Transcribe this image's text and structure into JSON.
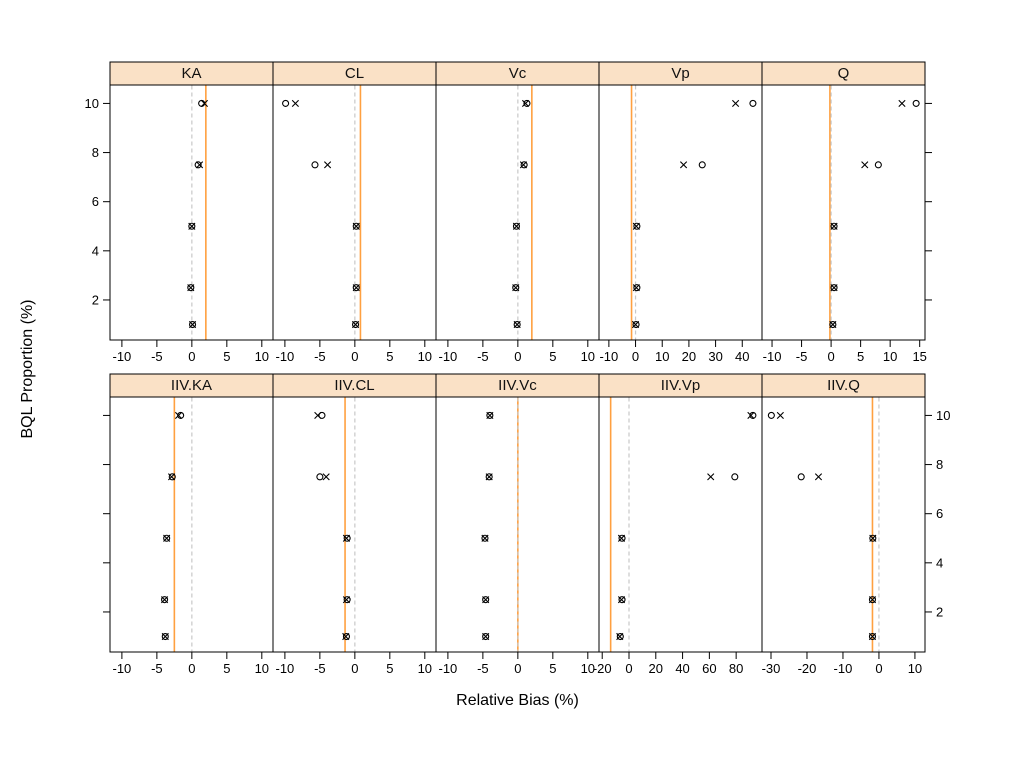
{
  "figure": {
    "xlabel": "Relative Bias (%)",
    "ylabel": "BQL Proportion (%)"
  },
  "colors": {
    "background": "#FFFFFF",
    "strip_fill": "#FAE1C6",
    "panel_border": "#000000",
    "ref_solid": "#FFA040",
    "ref_dashed": "#C8C8C8",
    "point": "#000000",
    "tick": "#000000",
    "tick_label": "#000000"
  },
  "chart_data": {
    "type": "scatter",
    "title": "",
    "xlabel": "Relative Bias (%)",
    "ylabel": "BQL Proportion (%)",
    "layout": {
      "rows": 2,
      "cols": 5,
      "strip_position": "top",
      "grid": "off",
      "y_labels_row1": "left",
      "y_labels_row2": "right"
    },
    "series": [
      {
        "name": "circle-marker",
        "marker": "open-circle"
      },
      {
        "name": "cross-marker",
        "marker": "x-cross"
      }
    ],
    "y_values": [
      10,
      7.5,
      5,
      2.5,
      1
    ],
    "y_ticks": [
      2,
      4,
      6,
      8,
      10
    ],
    "y_domain": [
      0.37,
      10.75
    ],
    "panels": [
      {
        "title": "KA",
        "xlim": [
          -11.7,
          11.6
        ],
        "x_ticks": [
          -10,
          -5,
          0,
          5,
          10
        ],
        "ref_solid_x": 2.0,
        "ref_dashed_x": 0,
        "points": {
          "circle": [
            1.4,
            0.9,
            0.0,
            -0.15,
            0.1
          ],
          "cross": [
            1.8,
            1.1,
            0.0,
            -0.15,
            0.1
          ]
        }
      },
      {
        "title": "CL",
        "xlim": [
          -11.7,
          11.6
        ],
        "x_ticks": [
          -10,
          -5,
          0,
          5,
          10
        ],
        "ref_solid_x": 0.8,
        "ref_dashed_x": 0,
        "points": {
          "circle": [
            -9.9,
            -5.7,
            0.2,
            0.2,
            0.1
          ],
          "cross": [
            -8.5,
            -3.9,
            0.2,
            0.2,
            0.1
          ]
        }
      },
      {
        "title": "Vc",
        "xlim": [
          -11.7,
          11.6
        ],
        "x_ticks": [
          -10,
          -5,
          0,
          5,
          10
        ],
        "ref_solid_x": 2.0,
        "ref_dashed_x": 0,
        "points": {
          "circle": [
            1.3,
            0.9,
            -0.2,
            -0.3,
            -0.1
          ],
          "cross": [
            1.1,
            0.8,
            -0.2,
            -0.3,
            -0.1
          ]
        }
      },
      {
        "title": "Vp",
        "xlim": [
          -13.7,
          47.4
        ],
        "x_ticks": [
          -10,
          0,
          10,
          20,
          30,
          40
        ],
        "ref_solid_x": -1.5,
        "ref_dashed_x": 0,
        "points": {
          "circle": [
            44,
            25,
            0.5,
            0.5,
            0.2
          ],
          "cross": [
            37.5,
            18,
            0.3,
            0.3,
            0.0
          ]
        }
      },
      {
        "title": "Q",
        "xlim": [
          -11.7,
          15.9
        ],
        "x_ticks": [
          -10,
          -5,
          0,
          5,
          10,
          15
        ],
        "ref_solid_x": -0.2,
        "ref_dashed_x": 0,
        "points": {
          "circle": [
            14.4,
            8.0,
            0.5,
            0.5,
            0.3
          ],
          "cross": [
            12.0,
            5.7,
            0.5,
            0.5,
            0.3
          ]
        }
      },
      {
        "title": "IIV.KA",
        "xlim": [
          -11.7,
          11.6
        ],
        "x_ticks": [
          -10,
          -5,
          0,
          5,
          10
        ],
        "ref_solid_x": -2.5,
        "ref_dashed_x": 0,
        "points": {
          "circle": [
            -1.6,
            -2.8,
            -3.6,
            -3.9,
            -3.8
          ],
          "cross": [
            -1.9,
            -2.9,
            -3.6,
            -3.9,
            -3.8
          ]
        }
      },
      {
        "title": "IIV.CL",
        "xlim": [
          -11.7,
          11.6
        ],
        "x_ticks": [
          -10,
          -5,
          0,
          5,
          10
        ],
        "ref_solid_x": -1.4,
        "ref_dashed_x": 0,
        "points": {
          "circle": [
            -4.7,
            -5.0,
            -1.1,
            -1.1,
            -1.2
          ],
          "cross": [
            -5.3,
            -4.1,
            -1.2,
            -1.2,
            -1.3
          ]
        }
      },
      {
        "title": "IIV.Vc",
        "xlim": [
          -11.7,
          11.6
        ],
        "x_ticks": [
          -10,
          -5,
          0,
          5,
          10
        ],
        "ref_solid_x": 0.0,
        "ref_dashed_x": 0,
        "points": {
          "circle": [
            -4.0,
            -4.1,
            -4.7,
            -4.6,
            -4.6
          ],
          "cross": [
            -4.0,
            -4.1,
            -4.7,
            -4.6,
            -4.6
          ]
        }
      },
      {
        "title": "IIV.Vp",
        "xlim": [
          -22.4,
          99.3
        ],
        "x_ticks": [
          -20,
          0,
          20,
          40,
          60,
          80
        ],
        "ref_solid_x": -13.7,
        "ref_dashed_x": 0,
        "points": {
          "circle": [
            92.5,
            79,
            -5.2,
            -5.2,
            -6.5
          ],
          "cross": [
            91,
            61,
            -5.6,
            -5.6,
            -6.9
          ]
        }
      },
      {
        "title": "IIV.Q",
        "xlim": [
          -32.5,
          12.8
        ],
        "x_ticks": [
          -30,
          -20,
          -10,
          0,
          10
        ],
        "ref_solid_x": -1.8,
        "ref_dashed_x": 0,
        "points": {
          "circle": [
            -29.9,
            -21.6,
            -1.7,
            -1.8,
            -1.8
          ],
          "cross": [
            -27.4,
            -16.8,
            -1.7,
            -1.8,
            -1.8
          ]
        }
      }
    ]
  }
}
